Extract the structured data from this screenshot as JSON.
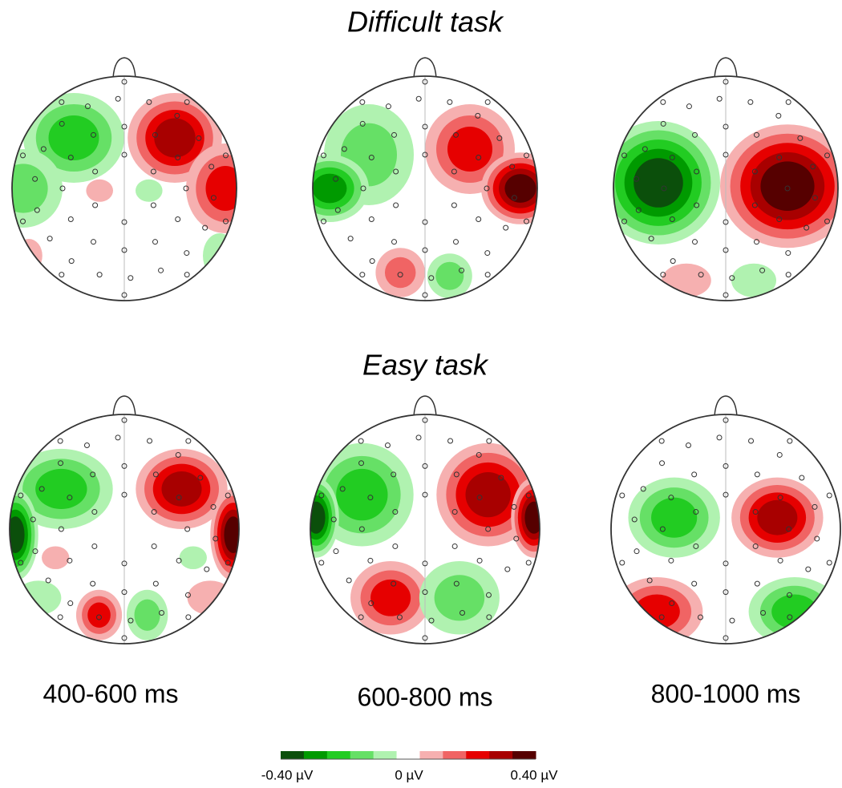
{
  "figure": {
    "rows": [
      {
        "title": "Difficult task"
      },
      {
        "title": "Easy task"
      }
    ],
    "time_windows": [
      "400-600 ms",
      "600-800 ms",
      "800-1000 ms"
    ],
    "colorbar": {
      "colors": [
        "#0b4f0b",
        "#009a00",
        "#22cc22",
        "#66e066",
        "#b0f2b0",
        "#ffffff",
        "#f6b0b0",
        "#f06464",
        "#e60000",
        "#a80000",
        "#560000"
      ],
      "labels": [
        "-0.40 µV",
        "0 µV",
        "0.40 µV"
      ]
    }
  }
}
